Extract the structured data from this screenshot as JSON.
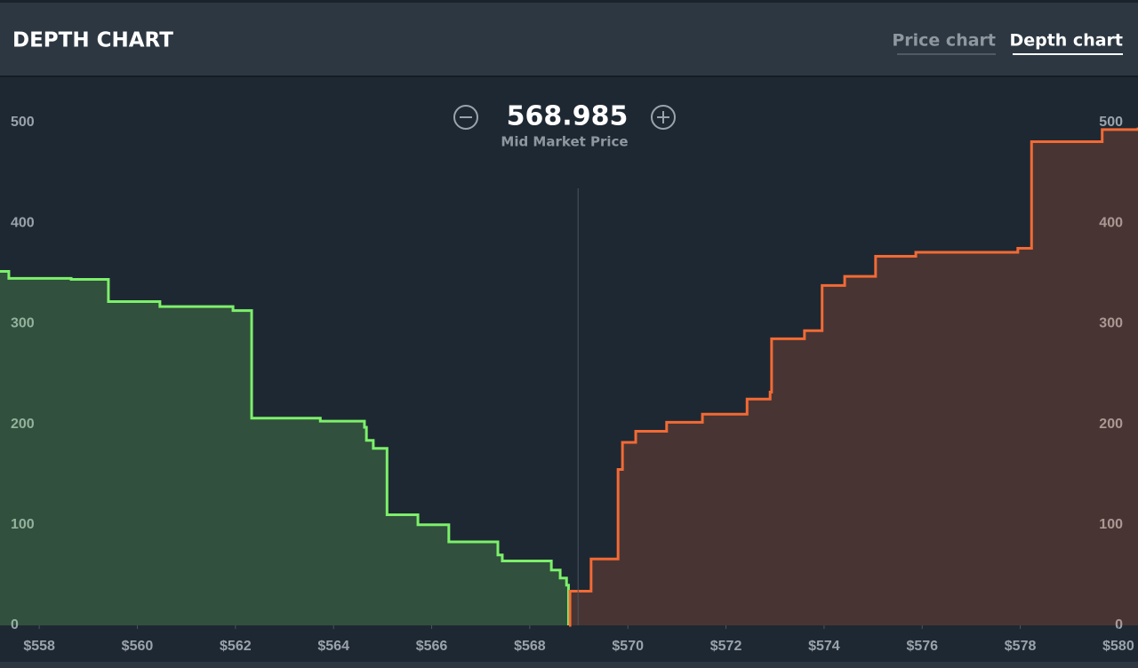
{
  "header": {
    "title": "DEPTH CHART",
    "tabs": [
      "Price chart",
      "Depth chart"
    ]
  },
  "chart_data": {
    "type": "depth",
    "mid_price": 568.985,
    "mid_price_label": "Mid Market Price",
    "xlim": [
      557.2,
      580.4
    ],
    "ylim": [
      0,
      545
    ],
    "xticks": [
      {
        "value": 558,
        "label": "$558"
      },
      {
        "value": 560,
        "label": "$560"
      },
      {
        "value": 562,
        "label": "$562"
      },
      {
        "value": 564,
        "label": "$564"
      },
      {
        "value": 566,
        "label": "$566"
      },
      {
        "value": 568,
        "label": "$568"
      },
      {
        "value": 570,
        "label": "$570"
      },
      {
        "value": 572,
        "label": "$572"
      },
      {
        "value": 574,
        "label": "$574"
      },
      {
        "value": 576,
        "label": "$576"
      },
      {
        "value": 578,
        "label": "$578"
      },
      {
        "value": 580,
        "label": "$580"
      }
    ],
    "yticks": [
      0,
      100,
      200,
      300,
      400,
      500
    ],
    "series": [
      {
        "color": "#7cf06a",
        "x": [
          557.2,
          557.38,
          558.65,
          559.41,
          560.46,
          561.95,
          562.33,
          563.73,
          564.63,
          564.67,
          564.81,
          565.09,
          565.72,
          566.35,
          567.35,
          567.44,
          568.44,
          568.62,
          568.75,
          568.79
        ],
        "values": [
          352,
          345,
          344,
          322,
          317,
          313,
          206,
          203,
          197,
          184,
          176,
          110,
          100,
          83,
          70,
          64,
          55,
          47,
          40,
          0
        ]
      },
      {
        "color": "#f26a35",
        "x": [
          568.8,
          568.82,
          569.25,
          569.8,
          569.89,
          570.16,
          570.79,
          571.52,
          572.43,
          572.9,
          572.93,
          573.6,
          573.96,
          574.42,
          575.05,
          575.87,
          577.95,
          578.23,
          579.67,
          580.4
        ],
        "values": [
          0,
          34,
          66,
          155,
          182,
          193,
          202,
          210,
          225,
          232,
          285,
          293,
          338,
          347,
          367,
          371,
          375,
          481,
          493,
          495
        ]
      }
    ]
  }
}
